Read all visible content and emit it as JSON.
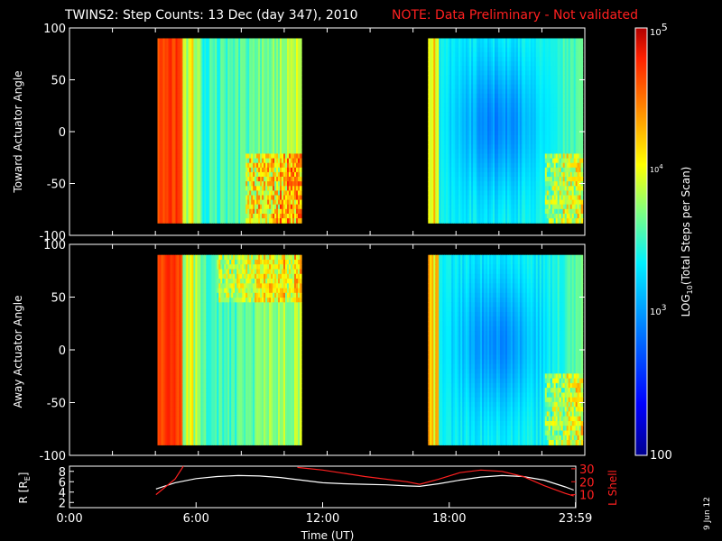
{
  "title": "TWINS2: Step Counts: 13 Dec (day 347), 2010",
  "note": "NOTE: Data Preliminary - Not validated",
  "date_stamp": "9 Jun 12",
  "colors": {
    "background": "#000000",
    "foreground": "#ffffff",
    "note": "#ff2020",
    "lshell": "#ff2020",
    "radius": "#ffffff"
  },
  "chart_data": [
    {
      "type": "heatmap",
      "panel": "toward",
      "ylabel": "Toward Actuator Angle",
      "ylim": [
        -100,
        100
      ],
      "yticks": [
        "100",
        "50",
        "0",
        "-50",
        "-100"
      ],
      "xlim": [
        0,
        24
      ],
      "data_intervals_ut_hours": [
        [
          4.1,
          10.8
        ],
        [
          16.7,
          23.9
        ]
      ],
      "angle_range": [
        -88,
        90
      ],
      "colorscale": "rainbow (log10)"
    },
    {
      "type": "heatmap",
      "panel": "away",
      "ylabel": "Away Actuator Angle",
      "ylim": [
        -100,
        100
      ],
      "yticks": [
        "100",
        "50",
        "0",
        "-50",
        "-100"
      ],
      "xlim": [
        0,
        24
      ],
      "data_intervals_ut_hours": [
        [
          4.1,
          10.8
        ],
        [
          16.7,
          23.9
        ]
      ],
      "angle_range": [
        -90,
        90
      ],
      "colorscale": "rainbow (log10)"
    },
    {
      "type": "line",
      "panel": "orbit",
      "xlabel": "Time (UT)",
      "xticks": [
        "0:00",
        "6:00",
        "12:00",
        "18:00",
        "23:59"
      ],
      "xlim": [
        0,
        24
      ],
      "ylabel_left": "R [R",
      "ylabel_left_sub": "E",
      "ylabel_left_end": "]",
      "ylabel_right": "L Shell",
      "yticks_left": [
        "8",
        "6",
        "4",
        "2"
      ],
      "yticks_right": [
        "30",
        "20",
        "10"
      ],
      "ylim_left": [
        1,
        9
      ],
      "ylim_right": [
        0,
        32
      ],
      "series": [
        {
          "axis": "left",
          "x": [
            4.1,
            5.0,
            6.0,
            7.0,
            8.0,
            9.0,
            10.0,
            11.0,
            12.0,
            13.0,
            14.0,
            15.0,
            16.0,
            16.6,
            17.5,
            18.5,
            19.5,
            20.5,
            21.5,
            22.5,
            23.5,
            23.9
          ],
          "y": [
            4.6,
            5.8,
            6.6,
            7.0,
            7.2,
            7.1,
            6.8,
            6.3,
            5.8,
            5.6,
            5.5,
            5.4,
            5.2,
            5.1,
            5.6,
            6.3,
            6.9,
            7.2,
            7.0,
            6.3,
            5.0,
            4.4
          ]
        },
        {
          "axis": "right",
          "x": [
            4.1,
            5.0,
            5.4
          ],
          "y": [
            10,
            22,
            32
          ]
        },
        {
          "axis": "right",
          "x": [
            10.8,
            12.0,
            14.0,
            16.0,
            16.6,
            17.5,
            18.5,
            19.5,
            20.5,
            21.5,
            22.5,
            23.5,
            23.9
          ],
          "y": [
            31,
            29,
            24,
            20,
            18,
            22,
            27,
            29,
            28,
            24,
            17,
            11,
            9
          ]
        }
      ]
    }
  ],
  "colorbar": {
    "label_main": "LOG",
    "label_sub": "10",
    "label_rest": "(Total Steps per Scan)",
    "tick_base_top": "10",
    "tick_exp_top": "5",
    "tick_base_mid": "10",
    "tick_exp_mid": "4",
    "tick_base_low": "10",
    "tick_exp_low": "3",
    "tick_bottom": "100",
    "range_log": [
      2,
      5
    ]
  }
}
